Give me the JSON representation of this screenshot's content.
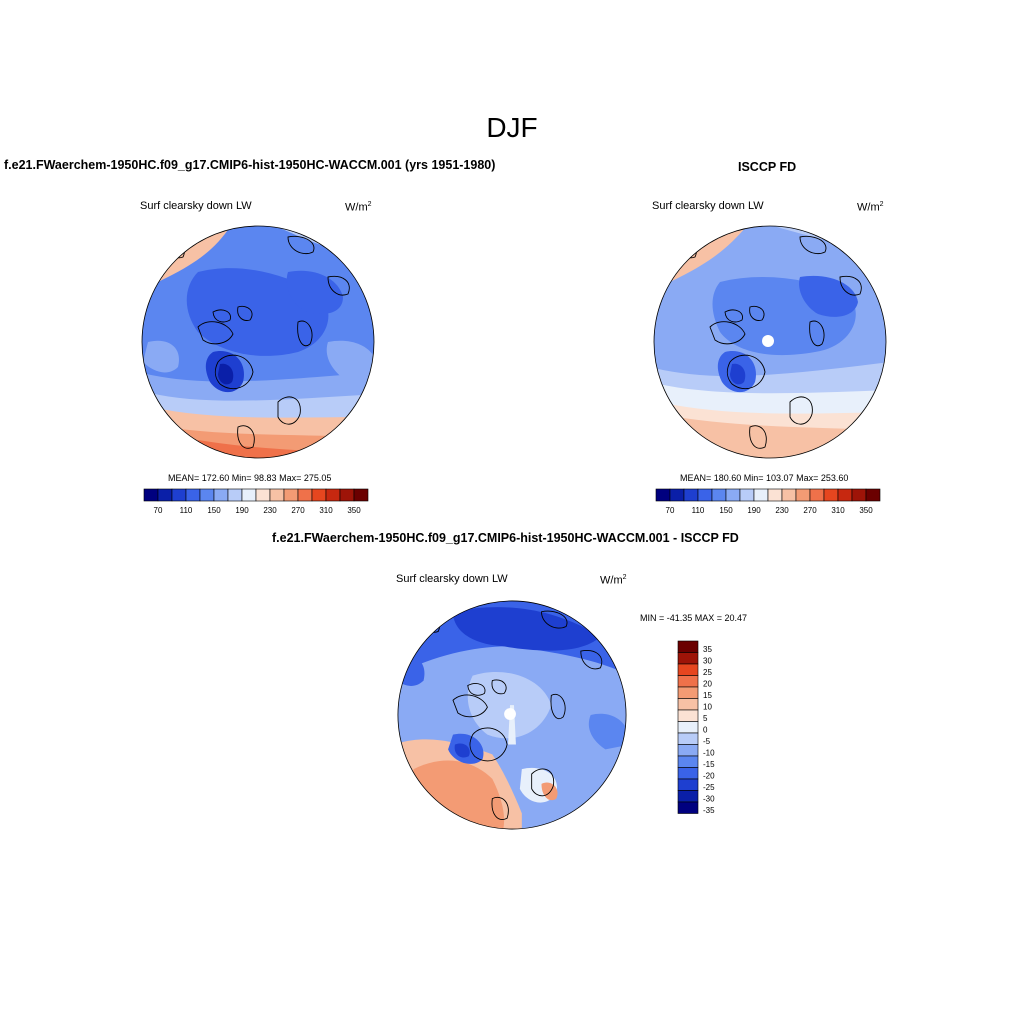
{
  "title": "DJF",
  "colors": {
    "palette_abs": [
      "#00007f",
      "#0a1fa8",
      "#1e3fd0",
      "#3a63e8",
      "#5b86f0",
      "#8aaaf4",
      "#b8ccf8",
      "#e8f0fb",
      "#fbe2d4",
      "#f7c1a5",
      "#f39b74",
      "#ef714a",
      "#e6461f",
      "#c72810",
      "#9e1408",
      "#6b0000"
    ],
    "palette_diff": [
      "#6b0000",
      "#9e1408",
      "#e6461f",
      "#ef714a",
      "#f39b74",
      "#f7c1a5",
      "#fbe2d4",
      "#e8f0fb",
      "#b8ccf8",
      "#8aaaf4",
      "#5b86f0",
      "#3a63e8",
      "#1e3fd0",
      "#0a1fa8",
      "#00007f"
    ]
  },
  "panels": [
    {
      "title": "f.e21.FWaerchem-1950HC.f09_g17.CMIP6-hist-1950HC-WACCM.001 (yrs 1951-1980)",
      "variable": "Surf clearsky down LW",
      "units_base": "W/m",
      "units_sup": "2",
      "stats": "MEAN= 172.60  Min=  98.83  Max= 275.05",
      "colorbar_labels": [
        "70",
        "110",
        "150",
        "190",
        "230",
        "270",
        "310",
        "350"
      ]
    },
    {
      "title": "ISCCP FD",
      "variable": "Surf clearsky down LW",
      "units_base": "W/m",
      "units_sup": "2",
      "stats": "MEAN= 180.60  Min= 103.07  Max= 253.60",
      "colorbar_labels": [
        "70",
        "110",
        "150",
        "190",
        "230",
        "270",
        "310",
        "350"
      ]
    },
    {
      "title": "f.e21.FWaerchem-1950HC.f09_g17.CMIP6-hist-1950HC-WACCM.001 - ISCCP FD",
      "variable": "Surf clearsky down LW",
      "units_base": "W/m",
      "units_sup": "2",
      "stats": "MIN = -41.35 MAX =  20.47",
      "colorbar_labels": [
        "35",
        "30",
        "25",
        "20",
        "15",
        "10",
        "5",
        "0",
        "-5",
        "-10",
        "-15",
        "-20",
        "-25",
        "-30",
        "-35"
      ]
    }
  ]
}
